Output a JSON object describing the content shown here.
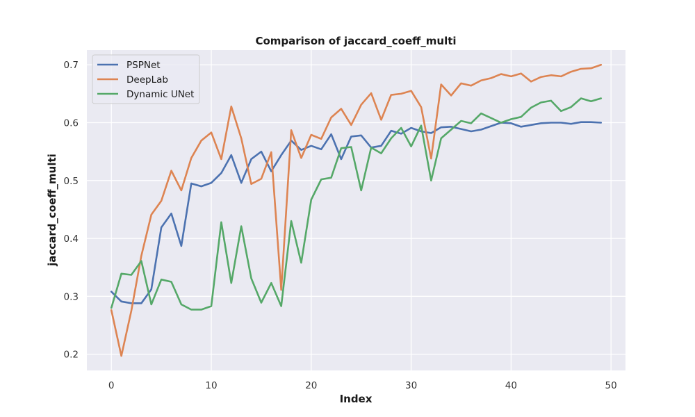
{
  "chart_data": {
    "type": "line",
    "title": "Comparison of jaccard_coeff_multi",
    "xlabel": "Index",
    "ylabel": "jaccard_coeff_multi",
    "xlim": [
      -2.45,
      51.45
    ],
    "ylim": [
      0.1719,
      0.7255
    ],
    "xticks": [
      0,
      10,
      20,
      30,
      40,
      50
    ],
    "yticks": [
      0.2,
      0.3,
      0.4,
      0.5,
      0.6,
      0.7
    ],
    "grid": true,
    "legend_position": "top-left",
    "background_color": "#eaeaf2",
    "x": [
      0,
      1,
      2,
      3,
      4,
      5,
      6,
      7,
      8,
      9,
      10,
      11,
      12,
      13,
      14,
      15,
      16,
      17,
      18,
      19,
      20,
      21,
      22,
      23,
      24,
      25,
      26,
      27,
      28,
      29,
      30,
      31,
      32,
      33,
      34,
      35,
      36,
      37,
      38,
      39,
      40,
      41,
      42,
      43,
      44,
      45,
      46,
      47,
      48,
      49
    ],
    "series": [
      {
        "name": "PSPNet",
        "color": "#4c72b0",
        "values": [
          0.308,
          0.291,
          0.288,
          0.288,
          0.312,
          0.419,
          0.443,
          0.387,
          0.495,
          0.49,
          0.496,
          0.513,
          0.544,
          0.496,
          0.537,
          0.55,
          0.516,
          0.544,
          0.569,
          0.553,
          0.56,
          0.554,
          0.58,
          0.537,
          0.576,
          0.578,
          0.557,
          0.56,
          0.586,
          0.581,
          0.591,
          0.585,
          0.582,
          0.592,
          0.593,
          0.589,
          0.585,
          0.588,
          0.594,
          0.6,
          0.599,
          0.593,
          0.596,
          0.599,
          0.6,
          0.6,
          0.598,
          0.601,
          0.601,
          0.6
        ]
      },
      {
        "name": "DeepLab",
        "color": "#dd8452",
        "values": [
          0.276,
          0.197,
          0.275,
          0.37,
          0.441,
          0.465,
          0.517,
          0.483,
          0.539,
          0.569,
          0.583,
          0.537,
          0.628,
          0.573,
          0.494,
          0.503,
          0.549,
          0.311,
          0.587,
          0.539,
          0.579,
          0.572,
          0.609,
          0.624,
          0.596,
          0.631,
          0.651,
          0.605,
          0.648,
          0.65,
          0.655,
          0.627,
          0.538,
          0.666,
          0.647,
          0.668,
          0.664,
          0.673,
          0.677,
          0.684,
          0.68,
          0.685,
          0.671,
          0.679,
          0.682,
          0.68,
          0.688,
          0.693,
          0.694,
          0.7
        ]
      },
      {
        "name": "Dynamic UNet",
        "color": "#55a868",
        "values": [
          0.28,
          0.339,
          0.337,
          0.361,
          0.286,
          0.329,
          0.325,
          0.286,
          0.277,
          0.277,
          0.283,
          0.428,
          0.323,
          0.421,
          0.331,
          0.289,
          0.323,
          0.283,
          0.43,
          0.358,
          0.467,
          0.502,
          0.505,
          0.556,
          0.558,
          0.483,
          0.557,
          0.547,
          0.573,
          0.591,
          0.559,
          0.595,
          0.5,
          0.573,
          0.588,
          0.603,
          0.599,
          0.616,
          0.608,
          0.6,
          0.606,
          0.61,
          0.626,
          0.635,
          0.638,
          0.62,
          0.627,
          0.642,
          0.637,
          0.642
        ]
      }
    ]
  }
}
